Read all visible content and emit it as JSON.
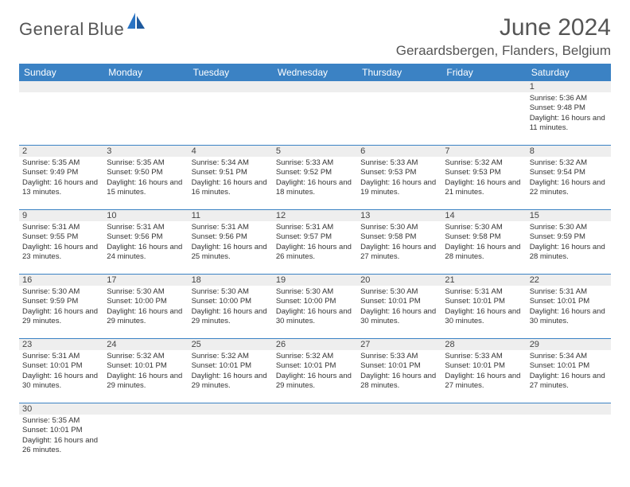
{
  "logo": {
    "text1": "General",
    "text2": "Blue"
  },
  "title": "June 2024",
  "location": "Geraardsbergen, Flanders, Belgium",
  "weekdays": [
    "Sunday",
    "Monday",
    "Tuesday",
    "Wednesday",
    "Thursday",
    "Friday",
    "Saturday"
  ],
  "colors": {
    "header_bar": "#3b82c4",
    "daynum_bg": "#eeeeee",
    "text": "#333333",
    "title": "#555555"
  },
  "weeks": [
    {
      "nums": [
        "",
        "",
        "",
        "",
        "",
        "",
        "1"
      ],
      "cells": [
        null,
        null,
        null,
        null,
        null,
        null,
        {
          "sunrise": "Sunrise: 5:36 AM",
          "sunset": "Sunset: 9:48 PM",
          "daylight": "Daylight: 16 hours and 11 minutes."
        }
      ]
    },
    {
      "nums": [
        "2",
        "3",
        "4",
        "5",
        "6",
        "7",
        "8"
      ],
      "cells": [
        {
          "sunrise": "Sunrise: 5:35 AM",
          "sunset": "Sunset: 9:49 PM",
          "daylight": "Daylight: 16 hours and 13 minutes."
        },
        {
          "sunrise": "Sunrise: 5:35 AM",
          "sunset": "Sunset: 9:50 PM",
          "daylight": "Daylight: 16 hours and 15 minutes."
        },
        {
          "sunrise": "Sunrise: 5:34 AM",
          "sunset": "Sunset: 9:51 PM",
          "daylight": "Daylight: 16 hours and 16 minutes."
        },
        {
          "sunrise": "Sunrise: 5:33 AM",
          "sunset": "Sunset: 9:52 PM",
          "daylight": "Daylight: 16 hours and 18 minutes."
        },
        {
          "sunrise": "Sunrise: 5:33 AM",
          "sunset": "Sunset: 9:53 PM",
          "daylight": "Daylight: 16 hours and 19 minutes."
        },
        {
          "sunrise": "Sunrise: 5:32 AM",
          "sunset": "Sunset: 9:53 PM",
          "daylight": "Daylight: 16 hours and 21 minutes."
        },
        {
          "sunrise": "Sunrise: 5:32 AM",
          "sunset": "Sunset: 9:54 PM",
          "daylight": "Daylight: 16 hours and 22 minutes."
        }
      ]
    },
    {
      "nums": [
        "9",
        "10",
        "11",
        "12",
        "13",
        "14",
        "15"
      ],
      "cells": [
        {
          "sunrise": "Sunrise: 5:31 AM",
          "sunset": "Sunset: 9:55 PM",
          "daylight": "Daylight: 16 hours and 23 minutes."
        },
        {
          "sunrise": "Sunrise: 5:31 AM",
          "sunset": "Sunset: 9:56 PM",
          "daylight": "Daylight: 16 hours and 24 minutes."
        },
        {
          "sunrise": "Sunrise: 5:31 AM",
          "sunset": "Sunset: 9:56 PM",
          "daylight": "Daylight: 16 hours and 25 minutes."
        },
        {
          "sunrise": "Sunrise: 5:31 AM",
          "sunset": "Sunset: 9:57 PM",
          "daylight": "Daylight: 16 hours and 26 minutes."
        },
        {
          "sunrise": "Sunrise: 5:30 AM",
          "sunset": "Sunset: 9:58 PM",
          "daylight": "Daylight: 16 hours and 27 minutes."
        },
        {
          "sunrise": "Sunrise: 5:30 AM",
          "sunset": "Sunset: 9:58 PM",
          "daylight": "Daylight: 16 hours and 28 minutes."
        },
        {
          "sunrise": "Sunrise: 5:30 AM",
          "sunset": "Sunset: 9:59 PM",
          "daylight": "Daylight: 16 hours and 28 minutes."
        }
      ]
    },
    {
      "nums": [
        "16",
        "17",
        "18",
        "19",
        "20",
        "21",
        "22"
      ],
      "cells": [
        {
          "sunrise": "Sunrise: 5:30 AM",
          "sunset": "Sunset: 9:59 PM",
          "daylight": "Daylight: 16 hours and 29 minutes."
        },
        {
          "sunrise": "Sunrise: 5:30 AM",
          "sunset": "Sunset: 10:00 PM",
          "daylight": "Daylight: 16 hours and 29 minutes."
        },
        {
          "sunrise": "Sunrise: 5:30 AM",
          "sunset": "Sunset: 10:00 PM",
          "daylight": "Daylight: 16 hours and 29 minutes."
        },
        {
          "sunrise": "Sunrise: 5:30 AM",
          "sunset": "Sunset: 10:00 PM",
          "daylight": "Daylight: 16 hours and 30 minutes."
        },
        {
          "sunrise": "Sunrise: 5:30 AM",
          "sunset": "Sunset: 10:01 PM",
          "daylight": "Daylight: 16 hours and 30 minutes."
        },
        {
          "sunrise": "Sunrise: 5:31 AM",
          "sunset": "Sunset: 10:01 PM",
          "daylight": "Daylight: 16 hours and 30 minutes."
        },
        {
          "sunrise": "Sunrise: 5:31 AM",
          "sunset": "Sunset: 10:01 PM",
          "daylight": "Daylight: 16 hours and 30 minutes."
        }
      ]
    },
    {
      "nums": [
        "23",
        "24",
        "25",
        "26",
        "27",
        "28",
        "29"
      ],
      "cells": [
        {
          "sunrise": "Sunrise: 5:31 AM",
          "sunset": "Sunset: 10:01 PM",
          "daylight": "Daylight: 16 hours and 30 minutes."
        },
        {
          "sunrise": "Sunrise: 5:32 AM",
          "sunset": "Sunset: 10:01 PM",
          "daylight": "Daylight: 16 hours and 29 minutes."
        },
        {
          "sunrise": "Sunrise: 5:32 AM",
          "sunset": "Sunset: 10:01 PM",
          "daylight": "Daylight: 16 hours and 29 minutes."
        },
        {
          "sunrise": "Sunrise: 5:32 AM",
          "sunset": "Sunset: 10:01 PM",
          "daylight": "Daylight: 16 hours and 29 minutes."
        },
        {
          "sunrise": "Sunrise: 5:33 AM",
          "sunset": "Sunset: 10:01 PM",
          "daylight": "Daylight: 16 hours and 28 minutes."
        },
        {
          "sunrise": "Sunrise: 5:33 AM",
          "sunset": "Sunset: 10:01 PM",
          "daylight": "Daylight: 16 hours and 27 minutes."
        },
        {
          "sunrise": "Sunrise: 5:34 AM",
          "sunset": "Sunset: 10:01 PM",
          "daylight": "Daylight: 16 hours and 27 minutes."
        }
      ]
    },
    {
      "nums": [
        "30",
        "",
        "",
        "",
        "",
        "",
        ""
      ],
      "cells": [
        {
          "sunrise": "Sunrise: 5:35 AM",
          "sunset": "Sunset: 10:01 PM",
          "daylight": "Daylight: 16 hours and 26 minutes."
        },
        null,
        null,
        null,
        null,
        null,
        null
      ]
    }
  ]
}
